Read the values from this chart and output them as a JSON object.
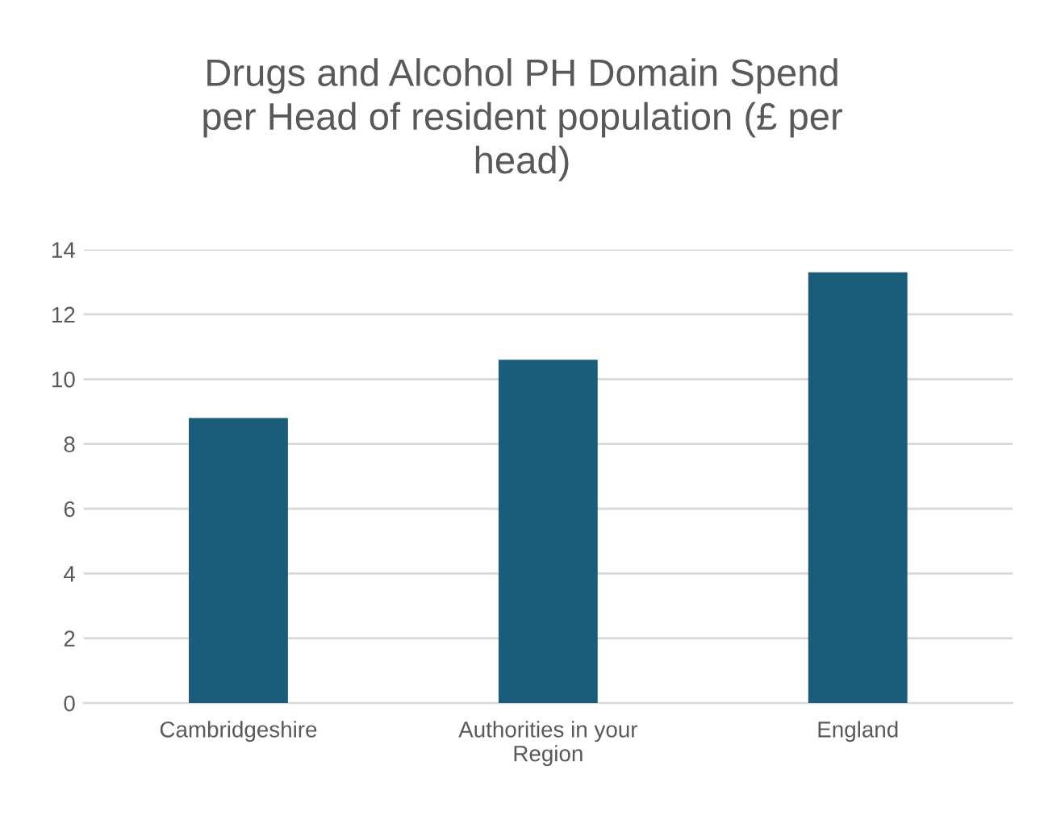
{
  "chart_data": {
    "type": "bar",
    "title": "Drugs and Alcohol PH Domain Spend\nper Head of resident population (£ per\nhead)",
    "categories": [
      "Cambridgeshire",
      "Authorities in your\nRegion",
      "England"
    ],
    "values": [
      8.8,
      10.6,
      13.3
    ],
    "color": "#1a5c7a",
    "ylim": [
      0,
      14
    ],
    "yticks": [
      0,
      2,
      4,
      6,
      8,
      10,
      12,
      14
    ],
    "grid": "y"
  }
}
